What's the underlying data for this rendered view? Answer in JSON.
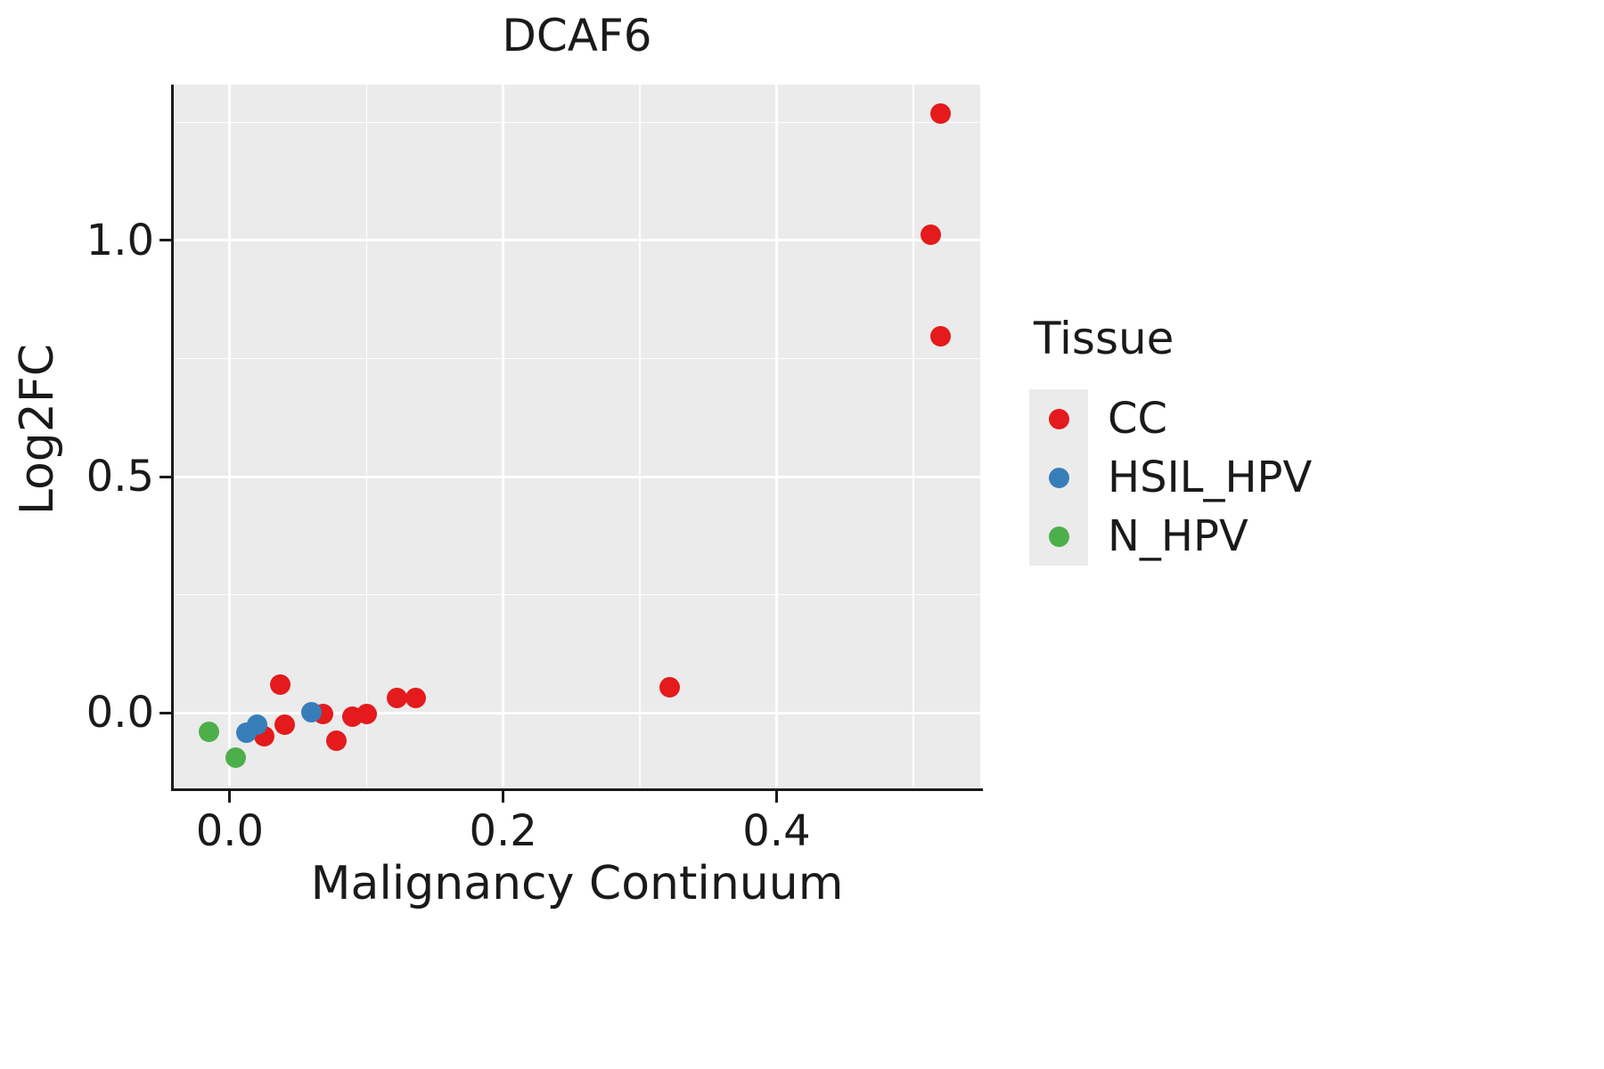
{
  "title": "DCAF6",
  "axes": {
    "xlabel": "Malignancy Continuum",
    "ylabel": "Log2FC"
  },
  "legend": {
    "title": "Tissue",
    "items": [
      {
        "label": "CC",
        "color": "#e41a1c"
      },
      {
        "label": "HSIL_HPV",
        "color": "#377eb8"
      },
      {
        "label": "N_HPV",
        "color": "#4daf4a"
      }
    ]
  },
  "chart_data": {
    "type": "scatter",
    "title": "DCAF6",
    "xlabel": "Malignancy Continuum",
    "ylabel": "Log2FC",
    "xlim": [
      -0.041,
      0.549
    ],
    "ylim": [
      -0.16,
      1.33
    ],
    "x_ticks": {
      "values": [
        0.0,
        0.2,
        0.4
      ],
      "labels": [
        "0.0",
        "0.2",
        "0.4"
      ]
    },
    "y_ticks": {
      "values": [
        0.0,
        0.5,
        1.0
      ],
      "labels": [
        "0.0",
        "0.5",
        "1.0"
      ]
    },
    "grid": "major+minor",
    "legend_position": "right",
    "panel_background": "#ebebeb",
    "gridline_color": "#ffffff",
    "series": [
      {
        "name": "CC",
        "color": "#e41a1c",
        "points": [
          [
            0.037,
            0.06
          ],
          [
            0.04,
            -0.025
          ],
          [
            0.025,
            -0.05
          ],
          [
            0.068,
            -0.003
          ],
          [
            0.078,
            -0.06
          ],
          [
            0.09,
            -0.008
          ],
          [
            0.1,
            -0.002
          ],
          [
            0.122,
            0.032
          ],
          [
            0.136,
            0.032
          ],
          [
            0.322,
            0.055
          ],
          [
            0.513,
            1.012
          ],
          [
            0.52,
            1.268
          ],
          [
            0.52,
            0.798
          ]
        ]
      },
      {
        "name": "HSIL_HPV",
        "color": "#377eb8",
        "points": [
          [
            0.012,
            -0.042
          ],
          [
            0.02,
            -0.026
          ],
          [
            0.06,
            0.002
          ]
        ]
      },
      {
        "name": "N_HPV",
        "color": "#4daf4a",
        "points": [
          [
            -0.015,
            -0.04
          ],
          [
            0.004,
            -0.095
          ]
        ]
      }
    ]
  }
}
